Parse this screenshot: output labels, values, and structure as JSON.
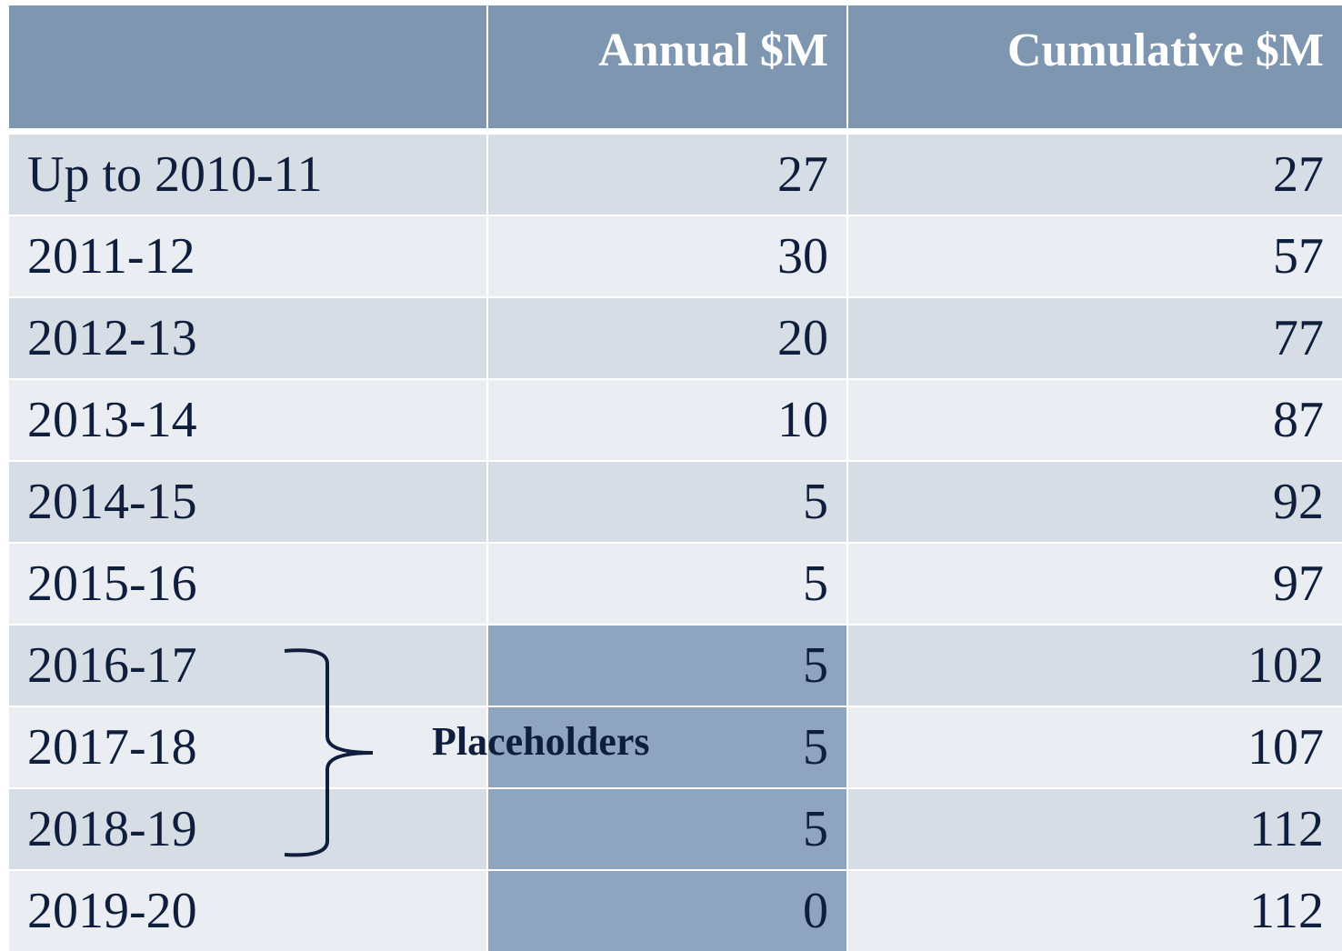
{
  "table": {
    "headers": [
      "Annual $M",
      "Cumulative $M"
    ],
    "rows": [
      [
        "Up to 2010-11",
        27,
        27
      ],
      [
        "2011-12",
        30,
        57
      ],
      [
        "2012-13",
        20,
        77
      ],
      [
        "2013-14",
        10,
        87
      ],
      [
        "2014-15",
        5,
        92
      ],
      [
        "2015-16",
        5,
        97
      ],
      [
        "2016-17",
        5,
        102
      ],
      [
        "2017-18",
        5,
        107
      ],
      [
        "2018-19",
        5,
        112
      ],
      [
        "2019-20",
        0,
        112
      ]
    ]
  },
  "annotation": "Placeholders"
}
